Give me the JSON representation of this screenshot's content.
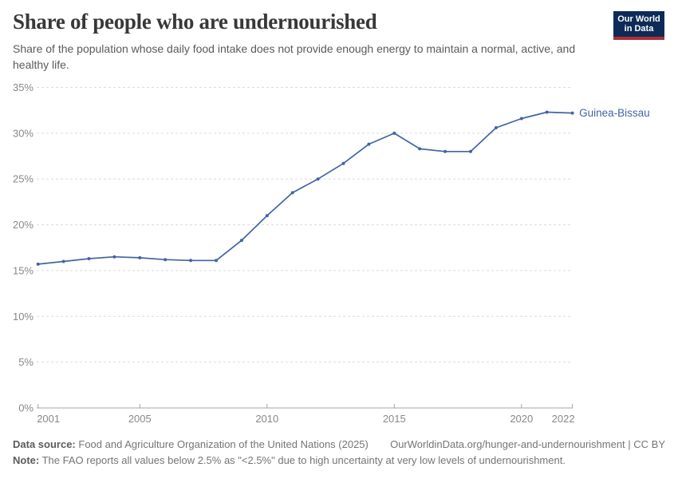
{
  "header": {
    "title": "Share of people who are undernourished",
    "subtitle": "Share of the population whose daily food intake does not provide enough energy to maintain a normal, active, and healthy life.",
    "logo": {
      "line1": "Our World",
      "line2": "in Data"
    }
  },
  "chart_data": {
    "type": "line",
    "title": "Share of people who are undernourished",
    "xlabel": "",
    "ylabel": "",
    "xlim": [
      2001,
      2022
    ],
    "ylim": [
      0,
      35
    ],
    "x_ticks": [
      2001,
      2005,
      2010,
      2015,
      2020,
      2022
    ],
    "y_ticks": [
      0,
      5,
      10,
      15,
      20,
      25,
      30,
      35
    ],
    "y_tick_suffix": "%",
    "grid": "horizontal-dashed",
    "legend_position": "end-of-line-label",
    "series": [
      {
        "name": "Guinea-Bissau",
        "color": "#4165a3",
        "x": [
          2001,
          2002,
          2003,
          2004,
          2005,
          2006,
          2007,
          2008,
          2009,
          2010,
          2011,
          2012,
          2013,
          2014,
          2015,
          2016,
          2017,
          2018,
          2019,
          2020,
          2021,
          2022
        ],
        "values": [
          15.7,
          16.0,
          16.3,
          16.5,
          16.4,
          16.2,
          16.1,
          16.1,
          18.3,
          21.0,
          23.5,
          25.0,
          26.7,
          28.8,
          30.0,
          28.3,
          28.0,
          28.0,
          30.6,
          31.6,
          32.3,
          32.2
        ]
      }
    ]
  },
  "footer": {
    "datasource_label": "Data source:",
    "datasource_text": "Food and Agriculture Organization of the United Nations (2025)",
    "link": "OurWorldinData.org/hunger-and-undernourishment | CC BY",
    "note_label": "Note:",
    "note_text": "The FAO reports all values below 2.5% as \"<2.5%\" due to high uncertainty at very low levels of undernourishment."
  },
  "colors": {
    "line": "#4165a3",
    "logo_navy": "#0d2b56",
    "logo_red": "#b02e35",
    "gridline": "#dcdcdc",
    "axis": "#a5a5a5",
    "tick_label": "#888888",
    "title_text": "#383838",
    "subtitle_text": "#5a5a5a",
    "footer_text": "#757575"
  }
}
